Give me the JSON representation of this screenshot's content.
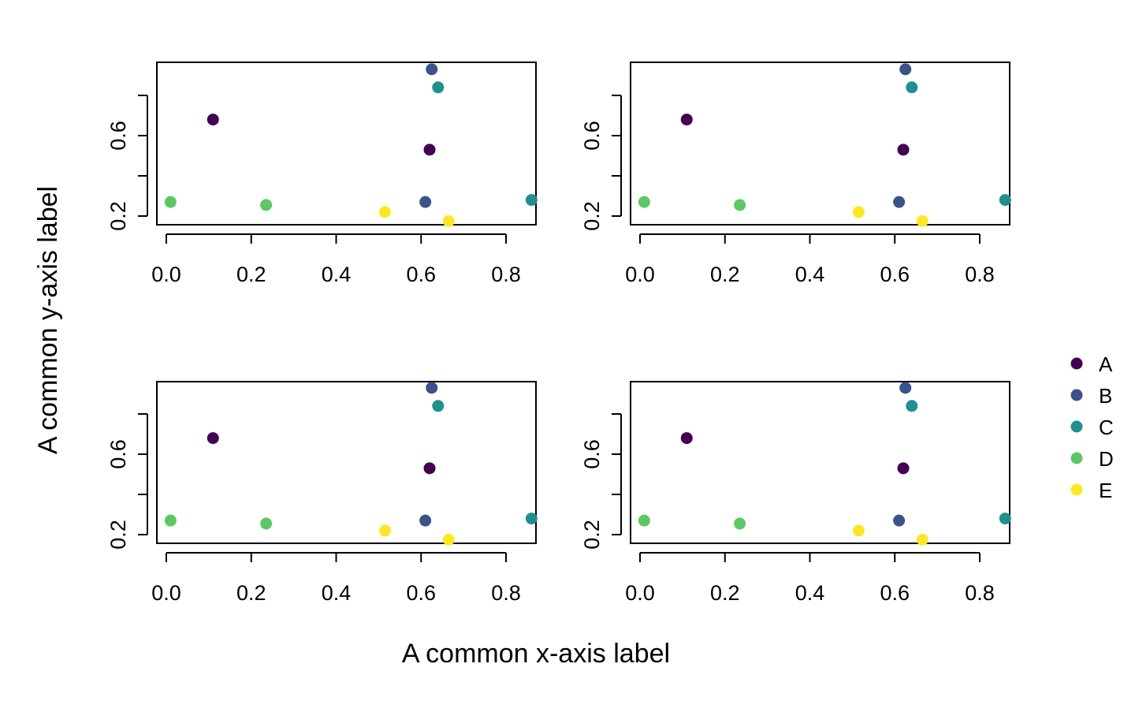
{
  "figure": {
    "xlabel": "A common x-axis label",
    "ylabel": "A common y-axis label"
  },
  "legend": {
    "placement": "right",
    "entries": [
      {
        "label": "A",
        "color": "#440154"
      },
      {
        "label": "B",
        "color": "#3B528B"
      },
      {
        "label": "C",
        "color": "#21908C"
      },
      {
        "label": "D",
        "color": "#5DC863"
      },
      {
        "label": "E",
        "color": "#FDE725"
      }
    ]
  },
  "chart_data": [
    {
      "type": "scatter",
      "xlim": [
        0.0,
        0.86
      ],
      "ylim": [
        0.18,
        0.94
      ],
      "x_ticks": [
        0.0,
        0.2,
        0.4,
        0.6,
        0.8
      ],
      "x_tick_labels": [
        "0.0",
        "0.2",
        "0.4",
        "0.6",
        "0.8"
      ],
      "y_ticks": [
        0.2,
        0.4,
        0.6,
        0.8
      ],
      "y_tick_labels": [
        "0.2",
        "",
        "0.6",
        ""
      ],
      "grid": false,
      "points": [
        {
          "x": 0.11,
          "y": 0.68,
          "group": "A"
        },
        {
          "x": 0.62,
          "y": 0.53,
          "group": "A"
        },
        {
          "x": 0.625,
          "y": 0.93,
          "group": "B"
        },
        {
          "x": 0.61,
          "y": 0.27,
          "group": "B"
        },
        {
          "x": 0.64,
          "y": 0.84,
          "group": "C"
        },
        {
          "x": 0.86,
          "y": 0.28,
          "group": "C"
        },
        {
          "x": 0.01,
          "y": 0.27,
          "group": "D"
        },
        {
          "x": 0.235,
          "y": 0.255,
          "group": "D"
        },
        {
          "x": 0.515,
          "y": 0.22,
          "group": "E"
        },
        {
          "x": 0.665,
          "y": 0.175,
          "group": "E"
        }
      ]
    },
    {
      "type": "scatter",
      "xlim": [
        0.0,
        0.86
      ],
      "ylim": [
        0.18,
        0.94
      ],
      "x_ticks": [
        0.0,
        0.2,
        0.4,
        0.6,
        0.8
      ],
      "x_tick_labels": [
        "0.0",
        "0.2",
        "0.4",
        "0.6",
        "0.8"
      ],
      "y_ticks": [
        0.2,
        0.4,
        0.6,
        0.8
      ],
      "y_tick_labels": [
        "0.2",
        "",
        "0.6",
        ""
      ],
      "grid": false,
      "points": [
        {
          "x": 0.11,
          "y": 0.68,
          "group": "A"
        },
        {
          "x": 0.62,
          "y": 0.53,
          "group": "A"
        },
        {
          "x": 0.625,
          "y": 0.93,
          "group": "B"
        },
        {
          "x": 0.61,
          "y": 0.27,
          "group": "B"
        },
        {
          "x": 0.64,
          "y": 0.84,
          "group": "C"
        },
        {
          "x": 0.86,
          "y": 0.28,
          "group": "C"
        },
        {
          "x": 0.01,
          "y": 0.27,
          "group": "D"
        },
        {
          "x": 0.235,
          "y": 0.255,
          "group": "D"
        },
        {
          "x": 0.515,
          "y": 0.22,
          "group": "E"
        },
        {
          "x": 0.665,
          "y": 0.175,
          "group": "E"
        }
      ]
    },
    {
      "type": "scatter",
      "xlim": [
        0.0,
        0.86
      ],
      "ylim": [
        0.18,
        0.94
      ],
      "x_ticks": [
        0.0,
        0.2,
        0.4,
        0.6,
        0.8
      ],
      "x_tick_labels": [
        "0.0",
        "0.2",
        "0.4",
        "0.6",
        "0.8"
      ],
      "y_ticks": [
        0.2,
        0.4,
        0.6,
        0.8
      ],
      "y_tick_labels": [
        "0.2",
        "",
        "0.6",
        ""
      ],
      "grid": false,
      "points": [
        {
          "x": 0.11,
          "y": 0.68,
          "group": "A"
        },
        {
          "x": 0.62,
          "y": 0.53,
          "group": "A"
        },
        {
          "x": 0.625,
          "y": 0.93,
          "group": "B"
        },
        {
          "x": 0.61,
          "y": 0.27,
          "group": "B"
        },
        {
          "x": 0.64,
          "y": 0.84,
          "group": "C"
        },
        {
          "x": 0.86,
          "y": 0.28,
          "group": "C"
        },
        {
          "x": 0.01,
          "y": 0.27,
          "group": "D"
        },
        {
          "x": 0.235,
          "y": 0.255,
          "group": "D"
        },
        {
          "x": 0.515,
          "y": 0.22,
          "group": "E"
        },
        {
          "x": 0.665,
          "y": 0.175,
          "group": "E"
        }
      ]
    },
    {
      "type": "scatter",
      "xlim": [
        0.0,
        0.86
      ],
      "ylim": [
        0.18,
        0.94
      ],
      "x_ticks": [
        0.0,
        0.2,
        0.4,
        0.6,
        0.8
      ],
      "x_tick_labels": [
        "0.0",
        "0.2",
        "0.4",
        "0.6",
        "0.8"
      ],
      "y_ticks": [
        0.2,
        0.4,
        0.6,
        0.8
      ],
      "y_tick_labels": [
        "0.2",
        "",
        "0.6",
        ""
      ],
      "grid": false,
      "points": [
        {
          "x": 0.11,
          "y": 0.68,
          "group": "A"
        },
        {
          "x": 0.62,
          "y": 0.53,
          "group": "A"
        },
        {
          "x": 0.625,
          "y": 0.93,
          "group": "B"
        },
        {
          "x": 0.61,
          "y": 0.27,
          "group": "B"
        },
        {
          "x": 0.64,
          "y": 0.84,
          "group": "C"
        },
        {
          "x": 0.86,
          "y": 0.28,
          "group": "C"
        },
        {
          "x": 0.01,
          "y": 0.27,
          "group": "D"
        },
        {
          "x": 0.235,
          "y": 0.255,
          "group": "D"
        },
        {
          "x": 0.515,
          "y": 0.22,
          "group": "E"
        },
        {
          "x": 0.665,
          "y": 0.175,
          "group": "E"
        }
      ]
    }
  ]
}
